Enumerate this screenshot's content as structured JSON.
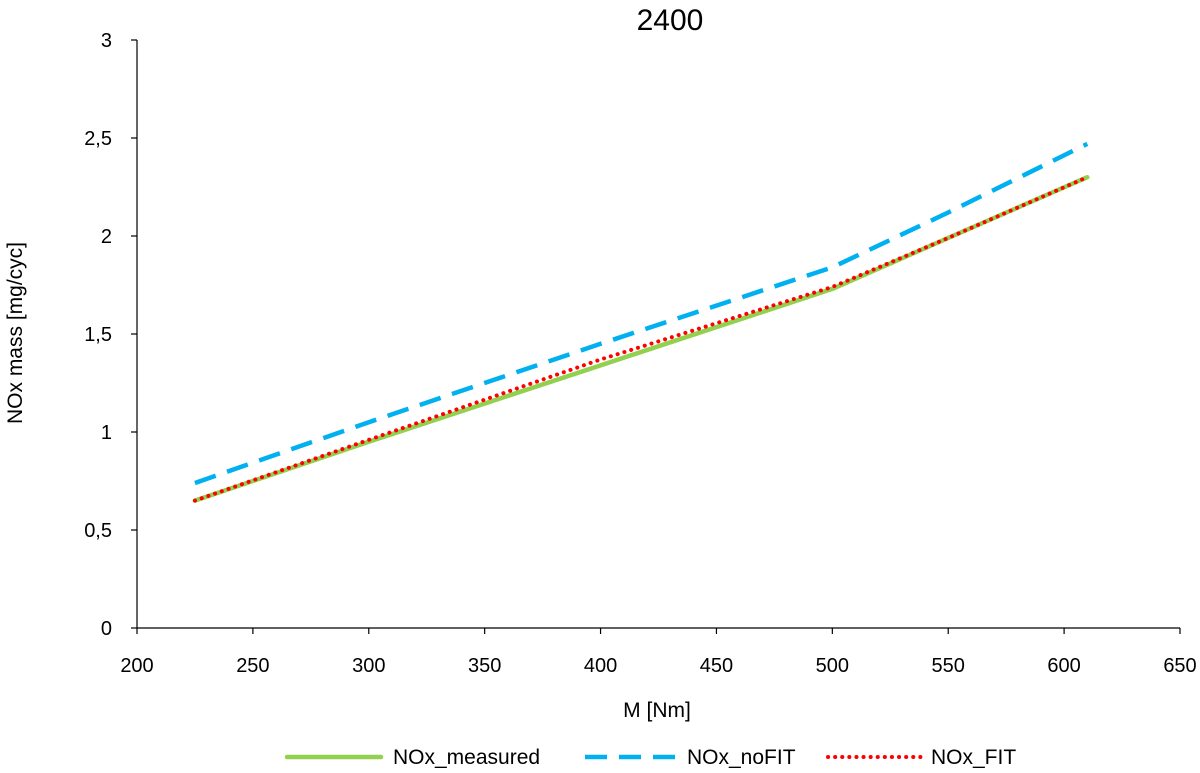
{
  "chart_data": {
    "type": "line",
    "title": "2400",
    "xlabel": "M [Nm]",
    "ylabel": "NOx mass [mg/cyc]",
    "xlim": [
      200,
      650
    ],
    "ylim": [
      0,
      3
    ],
    "x_ticks": [
      "200",
      "250",
      "300",
      "350",
      "400",
      "450",
      "500",
      "550",
      "600",
      "650"
    ],
    "y_ticks": [
      "0",
      "0,5",
      "1",
      "1,5",
      "2",
      "2,5",
      "3"
    ],
    "grid": false,
    "legend_position": "bottom",
    "series": [
      {
        "name": "NOx_measured",
        "color": "#92d050",
        "style": "solid",
        "x": [
          225,
          300,
          400,
          500,
          550,
          610
        ],
        "y": [
          0.65,
          0.95,
          1.34,
          1.73,
          1.99,
          2.3
        ]
      },
      {
        "name": "NOx_noFIT",
        "color": "#00b0f0",
        "style": "dashed",
        "x": [
          225,
          300,
          400,
          500,
          550,
          610
        ],
        "y": [
          0.74,
          1.05,
          1.45,
          1.84,
          2.12,
          2.47
        ]
      },
      {
        "name": "NOx_FIT",
        "color": "#ff0000",
        "style": "dotted",
        "x": [
          225,
          300,
          400,
          500,
          550,
          610
        ],
        "y": [
          0.65,
          0.96,
          1.37,
          1.74,
          1.99,
          2.3
        ]
      }
    ]
  }
}
